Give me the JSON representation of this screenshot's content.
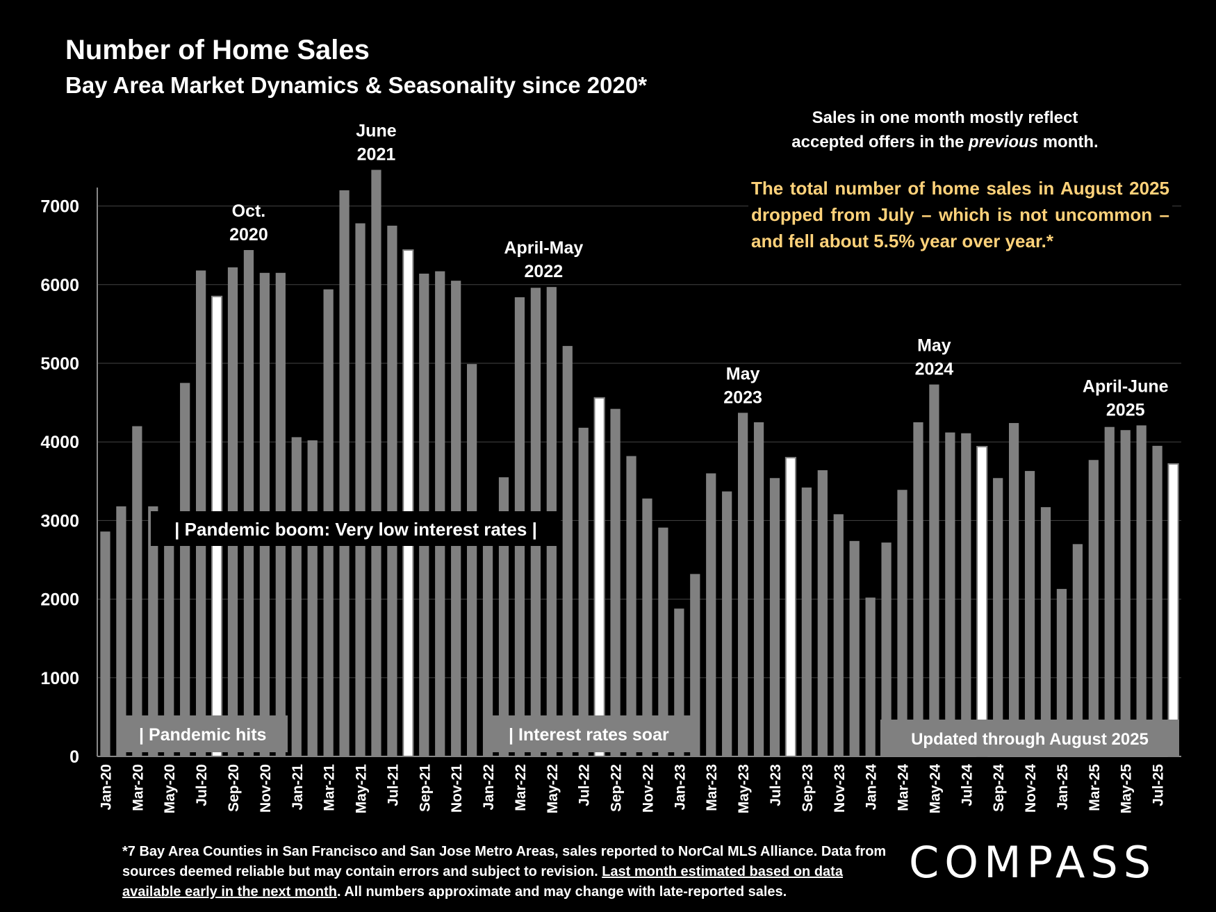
{
  "header": {
    "title": "Number of Home Sales",
    "subtitle": "Bay Area Market Dynamics & Seasonality since 2020*"
  },
  "note": {
    "line1": "Sales in one month mostly reflect",
    "line2_before": "accepted offers in the ",
    "line2_italic": "previous",
    "line2_after": " month."
  },
  "headline": "The total number of home sales in August 2025 dropped from July – which is not uncommon – and fell about 5.5% year over year.*",
  "footnote": {
    "part1": "*7 Bay Area Counties in San Francisco and San Jose Metro Areas, sales reported to NorCal MLS Alliance.  Data from sources deemed reliable but may contain errors and subject to revision. ",
    "underlined": "Last month estimated based on data available early in the next month",
    "part2": ". All numbers approximate and may change with late-reported sales."
  },
  "logo": "COMPASS",
  "colors": {
    "bar": "#808080",
    "highlight": "#ffffff",
    "highlight_outline": "#808080",
    "headline": "#ffd27a",
    "grid": "#444444"
  },
  "chart_data": {
    "type": "bar",
    "title": "Number of Home Sales",
    "ylim": [
      0,
      7500
    ],
    "yticks": [
      0,
      1000,
      2000,
      3000,
      4000,
      5000,
      6000,
      7000
    ],
    "grid": true,
    "categories": [
      "Jan-20",
      "Feb-20",
      "Mar-20",
      "Apr-20",
      "May-20",
      "Jun-20",
      "Jul-20",
      "Aug-20",
      "Sep-20",
      "Oct-20",
      "Nov-20",
      "Dec-20",
      "Jan-21",
      "Feb-21",
      "Mar-21",
      "Apr-21",
      "May-21",
      "Jun-21",
      "Jul-21",
      "Aug-21",
      "Sep-21",
      "Oct-21",
      "Nov-21",
      "Dec-21",
      "Jan-22",
      "Feb-22",
      "Mar-22",
      "Apr-22",
      "May-22",
      "Jun-22",
      "Jul-22",
      "Aug-22",
      "Sep-22",
      "Oct-22",
      "Nov-22",
      "Dec-22",
      "Jan-23",
      "Feb-23",
      "Mar-23",
      "Apr-23",
      "May-23",
      "Jun-23",
      "Jul-23",
      "Aug-23",
      "Sep-23",
      "Oct-23",
      "Nov-23",
      "Dec-23",
      "Jan-24",
      "Feb-24",
      "Mar-24",
      "Apr-24",
      "May-24",
      "Jun-24",
      "Jul-24",
      "Aug-24",
      "Sep-24",
      "Oct-24",
      "Nov-24",
      "Dec-24",
      "Jan-25",
      "Feb-25",
      "Mar-25",
      "Apr-25",
      "May-25",
      "Jun-25",
      "Jul-25",
      "Aug-25"
    ],
    "xtick_labels": [
      "Jan-20",
      "Mar-20",
      "May-20",
      "Jul-20",
      "Sep-20",
      "Nov-20",
      "Jan-21",
      "Mar-21",
      "May-21",
      "Jul-21",
      "Sep-21",
      "Nov-21",
      "Jan-22",
      "Mar-22",
      "May-22",
      "Jul-22",
      "Sep-22",
      "Nov-22",
      "Jan-23",
      "Mar-23",
      "May-23",
      "Jul-23",
      "Sep-23",
      "Nov-23",
      "Jan-24",
      "Mar-24",
      "May-24",
      "Jul-24",
      "Sep-24",
      "Nov-24",
      "Jan-25",
      "Mar-25",
      "May-25",
      "Jul-25"
    ],
    "values": [
      2860,
      3180,
      4200,
      3180,
      3000,
      4750,
      6180,
      5850,
      6220,
      6440,
      6150,
      6150,
      4060,
      4020,
      5940,
      7200,
      6780,
      7460,
      6750,
      6440,
      6140,
      6170,
      6050,
      4990,
      3100,
      3550,
      5840,
      5960,
      5970,
      5220,
      4180,
      4560,
      4420,
      3820,
      3280,
      2910,
      1880,
      2320,
      3600,
      3370,
      4370,
      4250,
      3540,
      3800,
      3420,
      3640,
      3080,
      2740,
      2020,
      2720,
      3390,
      4250,
      4730,
      4120,
      4110,
      3940,
      3540,
      4240,
      3630,
      3170,
      2130,
      2700,
      3770,
      4190,
      4150,
      4210,
      3950,
      3720
    ],
    "highlight": [
      "Aug-20",
      "Aug-21",
      "Aug-22",
      "Aug-23",
      "Aug-24",
      "Aug-25"
    ],
    "annotations": [
      {
        "at": "Oct-20",
        "lines": [
          "Oct.",
          "2020"
        ]
      },
      {
        "at": "Jun-21",
        "lines": [
          "June",
          "2021"
        ]
      },
      {
        "at": "Apr-22",
        "offset": 0.5,
        "lines": [
          "April-May",
          "2022"
        ]
      },
      {
        "at": "May-23",
        "lines": [
          "May",
          "2023"
        ]
      },
      {
        "at": "May-24",
        "lines": [
          "May",
          "2024"
        ]
      },
      {
        "at": "May-25",
        "lines": [
          "April-June",
          "2025"
        ]
      }
    ],
    "callouts": [
      {
        "label": "| Pandemic boom: Very low interest rates |"
      },
      {
        "label": "| Pandemic hits"
      },
      {
        "label": "| Interest rates soar"
      },
      {
        "label": "Updated through August 2025"
      }
    ]
  }
}
